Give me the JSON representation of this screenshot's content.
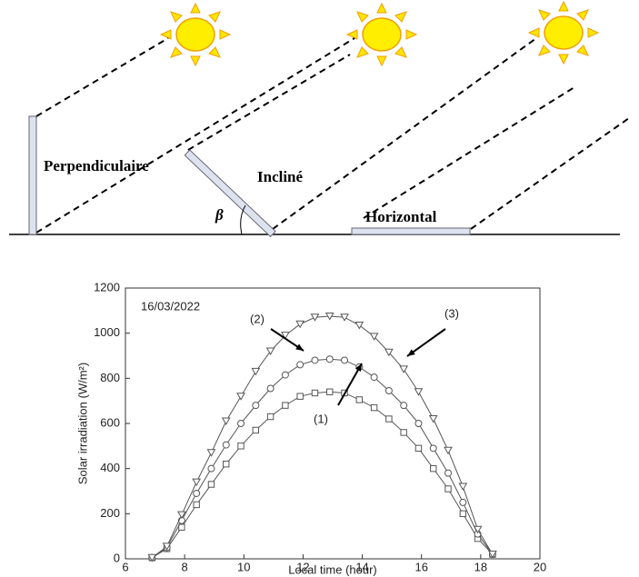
{
  "diagram": {
    "labels": [
      "Perpendiculaire",
      "Incliné",
      "Horizontal"
    ],
    "angle": "β"
  },
  "chart_data": {
    "type": "line",
    "date_label": "16/03/2022",
    "x_label": "Local time (hour)",
    "y_label": "Solar irradiation (W/m²)",
    "annotations": [
      "(1)",
      "(2)",
      "(3)"
    ],
    "x": [
      6.9,
      7.4,
      7.9,
      8.4,
      8.9,
      9.4,
      9.9,
      10.4,
      10.9,
      11.4,
      11.9,
      12.4,
      12.9,
      13.4,
      13.9,
      14.4,
      14.9,
      15.4,
      15.9,
      16.4,
      16.9,
      17.4,
      17.9,
      18.4
    ],
    "series": [
      {
        "color": "#555555",
        "marker": "square",
        "values": [
          5,
          45,
          140,
          240,
          330,
          420,
          500,
          570,
          630,
          680,
          720,
          735,
          740,
          735,
          705,
          670,
          620,
          560,
          490,
          400,
          310,
          200,
          90,
          20
        ]
      },
      {
        "color": "#555555",
        "marker": "circle",
        "values": [
          5,
          50,
          170,
          290,
          400,
          505,
          600,
          680,
          755,
          815,
          860,
          880,
          885,
          880,
          850,
          805,
          745,
          680,
          600,
          490,
          380,
          250,
          110,
          20
        ]
      },
      {
        "color": "#555555",
        "marker": "triangle-down",
        "values": [
          5,
          55,
          195,
          340,
          470,
          610,
          720,
          830,
          920,
          990,
          1040,
          1070,
          1075,
          1070,
          1035,
          985,
          915,
          840,
          740,
          620,
          480,
          320,
          130,
          20
        ]
      }
    ],
    "xlim": [
      6,
      20
    ],
    "xticks": [
      6,
      8,
      10,
      12,
      14,
      16,
      18,
      20
    ],
    "ylim": [
      0,
      1200
    ],
    "yticks": [
      0,
      200,
      400,
      600,
      800,
      1000,
      1200
    ],
    "grid": false
  }
}
